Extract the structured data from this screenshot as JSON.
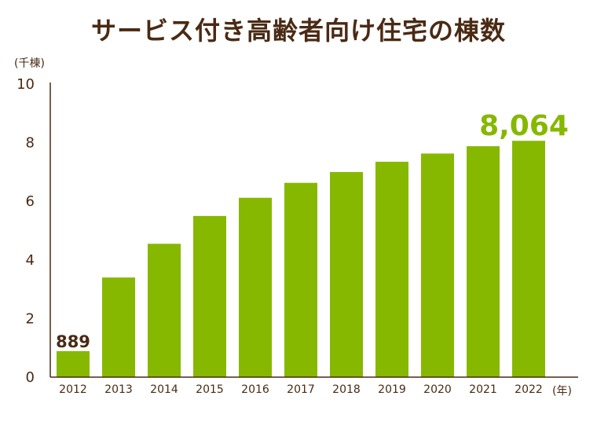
{
  "chart_data": {
    "type": "bar",
    "title": "サービス付き高齢者向け住宅の棟数",
    "ylabel": "(千棟)",
    "xlabel": "(年)",
    "ylim": [
      0,
      10
    ],
    "yticks": [
      "0",
      "2",
      "4",
      "6",
      "8",
      "10"
    ],
    "categories": [
      "2012",
      "2013",
      "2014",
      "2015",
      "2016",
      "2017",
      "2018",
      "2019",
      "2020",
      "2021",
      "2022"
    ],
    "values": [
      0.889,
      3.4,
      4.55,
      5.5,
      6.12,
      6.63,
      7.0,
      7.35,
      7.63,
      7.88,
      8.064
    ],
    "data_labels": {
      "first": "889",
      "last": "8,064"
    },
    "colors": {
      "bar": "#86b800",
      "axis": "#4a2a14",
      "text": "#4a2a14",
      "highlight": "#86b800"
    }
  }
}
